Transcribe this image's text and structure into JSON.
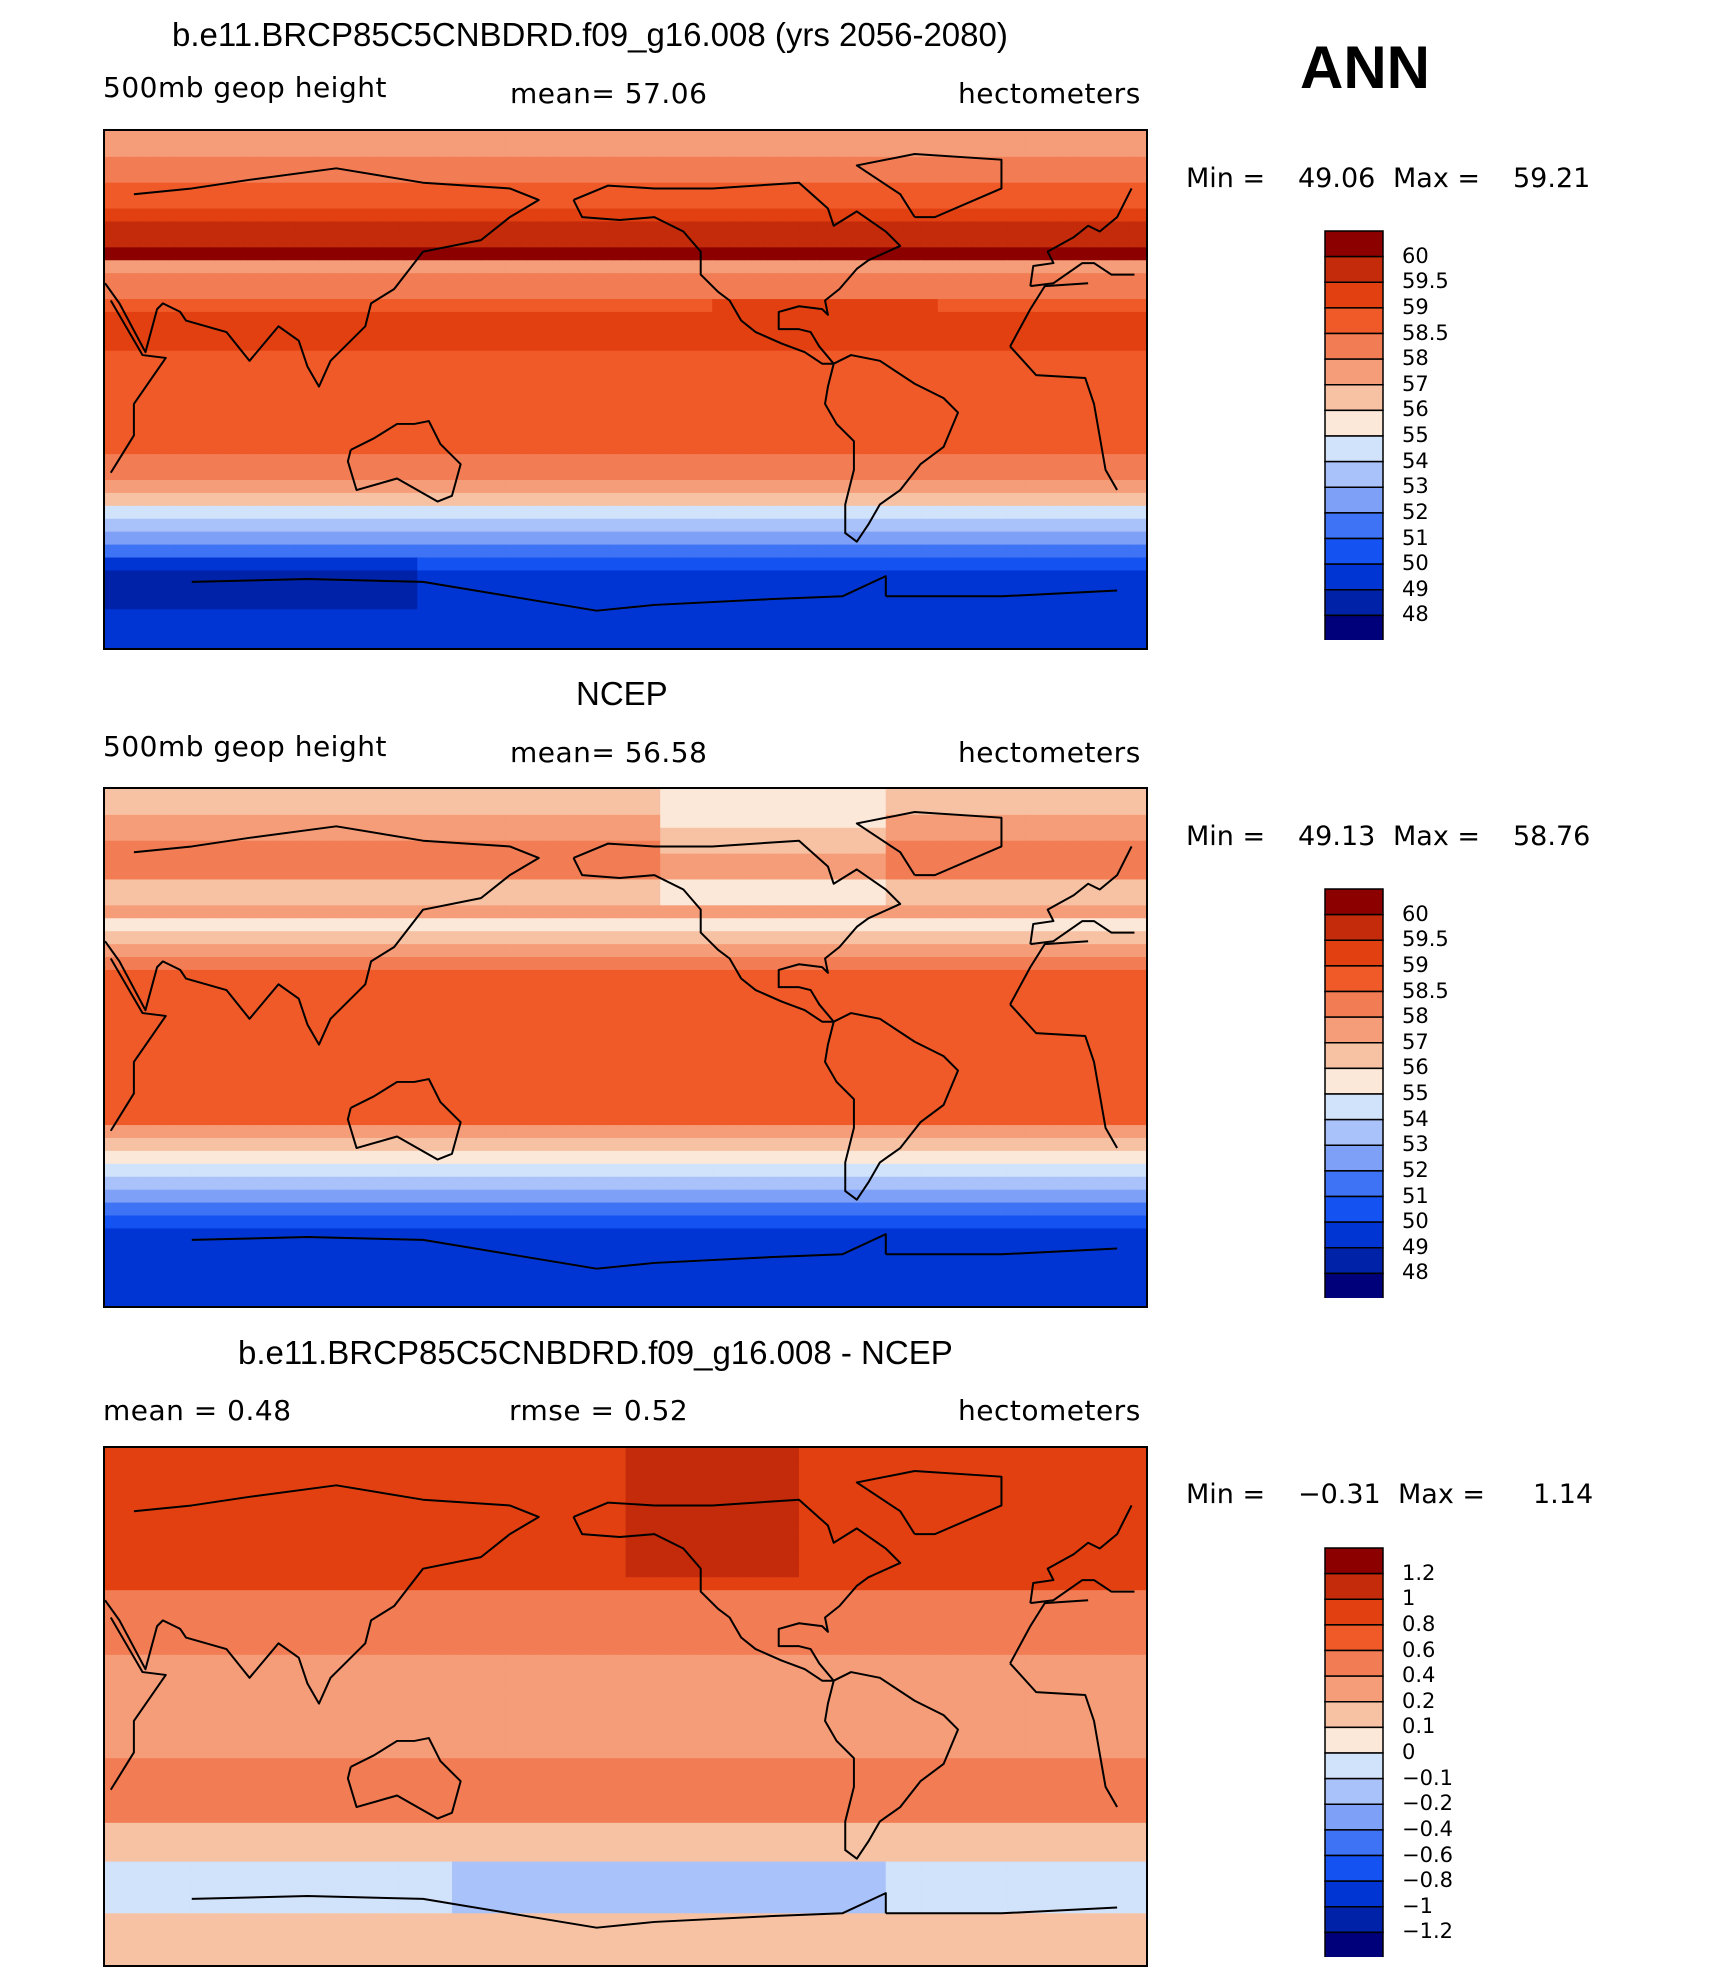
{
  "season": "ANN",
  "palette": {
    "scale": [
      "#00007a",
      "#0022a8",
      "#0035d4",
      "#1452f2",
      "#3f73f5",
      "#7ea0f7",
      "#a9c2fa",
      "#d1e2fb",
      "#fbe8d8",
      "#f7c2a3",
      "#f59d78",
      "#f27c54",
      "#ef5a28",
      "#e34012",
      "#c42b0a",
      "#8c0000"
    ]
  },
  "panels": [
    {
      "title": "b.e11.BRCP85C5CNBDRD.f09_g16.008 (yrs 2056-2080)",
      "left_label": "500mb geop height",
      "center_label": "mean=   57.06",
      "units": "hectometers",
      "min_label": "Min =",
      "min_value": "49.06",
      "max_label": "Max =",
      "max_value": "59.21",
      "field": "model",
      "colorbar_labels": [
        "60",
        "59.5",
        "59",
        "58.5",
        "58",
        "57",
        "56",
        "55",
        "54",
        "53",
        "52",
        "51",
        "50",
        "49",
        "48"
      ]
    },
    {
      "title": "NCEP",
      "left_label": "500mb geop height",
      "center_label": "mean=   56.58",
      "units": "hectometers",
      "min_label": "Min =",
      "min_value": "49.13",
      "max_label": "Max =",
      "max_value": "58.76",
      "field": "obs",
      "colorbar_labels": [
        "60",
        "59.5",
        "59",
        "58.5",
        "58",
        "57",
        "56",
        "55",
        "54",
        "53",
        "52",
        "51",
        "50",
        "49",
        "48"
      ]
    },
    {
      "title": "b.e11.BRCP85C5CNBDRD.f09_g16.008 - NCEP",
      "left_label": "mean =     0.48",
      "center_label": "rmse =     0.52",
      "units": "hectometers",
      "min_label": "Min =",
      "min_value": "−0.31",
      "max_label": "Max =",
      "max_value": "1.14",
      "field": "diff",
      "colorbar_labels": [
        "1.2",
        "1",
        "0.8",
        "0.6",
        "0.4",
        "0.2",
        "0.1",
        "0",
        "−0.1",
        "−0.2",
        "−0.4",
        "−0.6",
        "−0.8",
        "−1",
        "−1.2"
      ]
    }
  ]
}
